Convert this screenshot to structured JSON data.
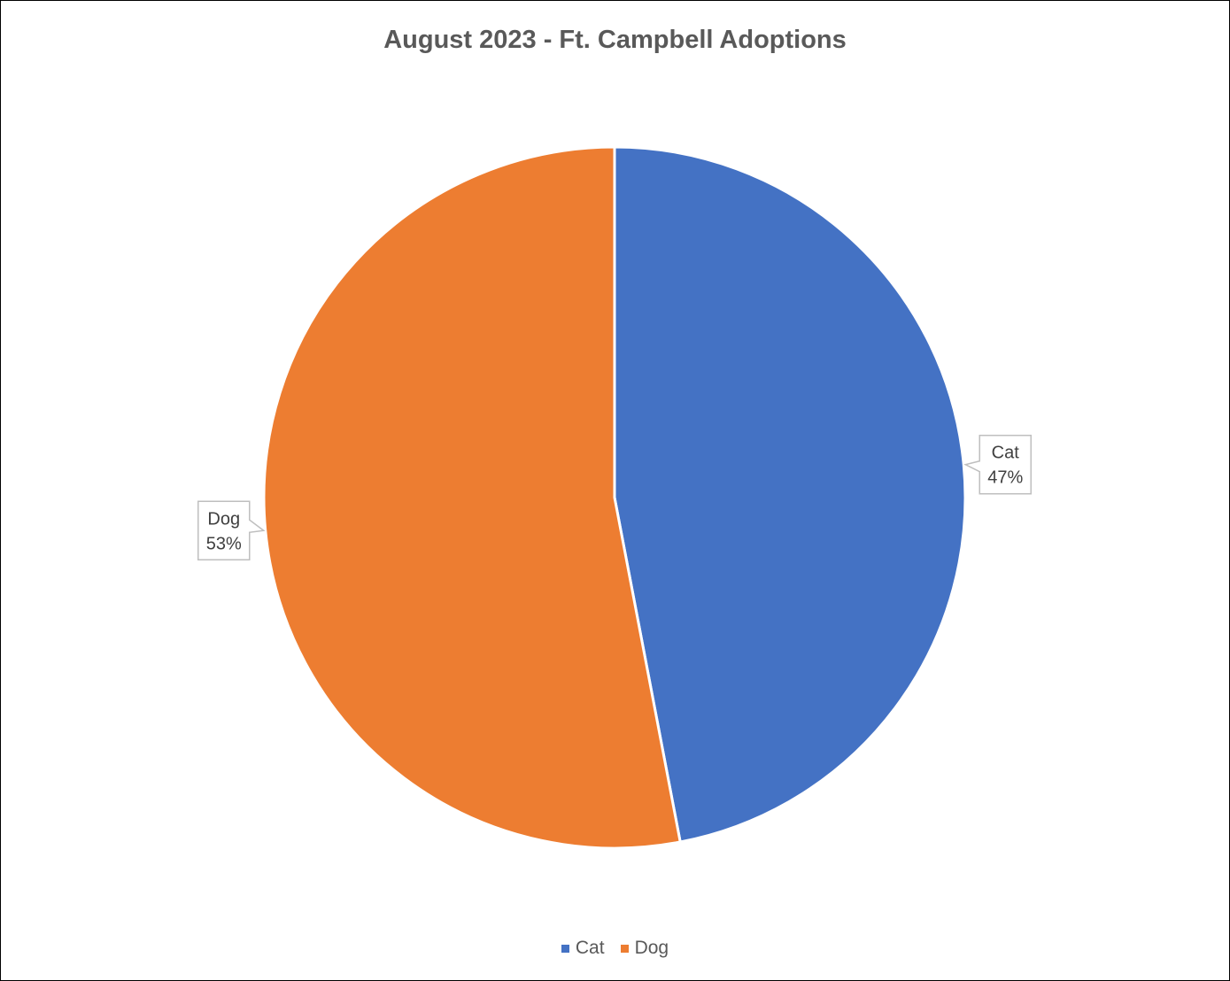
{
  "chart_data": {
    "type": "pie",
    "title": "August 2023 - Ft. Campbell Adoptions",
    "categories": [
      "Cat",
      "Dog"
    ],
    "values": [
      47,
      53
    ],
    "data_labels": [
      {
        "category": "Cat",
        "percent": "47%"
      },
      {
        "category": "Dog",
        "percent": "53%"
      }
    ],
    "colors": [
      "#4472C4",
      "#ED7D31"
    ],
    "legend_position": "bottom",
    "legend": [
      {
        "label": "Cat",
        "color": "#4472C4"
      },
      {
        "label": "Dog",
        "color": "#ED7D31"
      }
    ]
  }
}
